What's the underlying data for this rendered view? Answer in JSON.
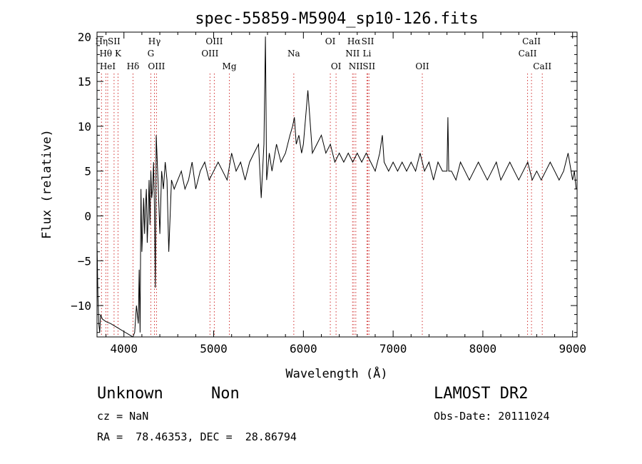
{
  "chart_data": {
    "type": "line",
    "title": "spec-55859-M5904_sp10-126.fits",
    "xlabel": "Wavelength (Å)",
    "ylabel": "Flux (relative)",
    "xlim": [
      3700,
      9050
    ],
    "ylim": [
      -13.5,
      20.5
    ],
    "xticks": [
      4000,
      5000,
      6000,
      7000,
      8000,
      9000
    ],
    "xtick_labels": [
      "4000",
      "5000",
      "6000",
      "7000",
      "8000",
      "9000"
    ],
    "yticks": [
      -10,
      -5,
      0,
      5,
      10,
      15,
      20
    ],
    "ytick_labels": [
      "−10",
      "−5",
      "0",
      "5",
      "10",
      "15",
      "20"
    ],
    "grid": false,
    "line_color": "#000000",
    "marker_color": "#d03030",
    "series": [
      {
        "x": [
          3700,
          3710,
          3720,
          3730,
          3740,
          3760,
          3800,
          3850,
          3900,
          3950,
          4000,
          4050,
          4100,
          4120,
          4140,
          4160,
          4170,
          4180,
          4190,
          4200,
          4210,
          4220,
          4230,
          4240,
          4250,
          4260,
          4270,
          4280,
          4290,
          4300,
          4310,
          4320,
          4330,
          4340,
          4350,
          4360,
          4380,
          4400,
          4420,
          4440,
          4460,
          4480,
          4500,
          4530,
          4560,
          4600,
          4640,
          4680,
          4720,
          4760,
          4800,
          4850,
          4900,
          4950,
          5000,
          5050,
          5100,
          5150,
          5200,
          5250,
          5300,
          5350,
          5400,
          5450,
          5500,
          5530,
          5560,
          5577,
          5590,
          5620,
          5650,
          5700,
          5750,
          5800,
          5850,
          5880,
          5900,
          5920,
          5950,
          5980,
          6000,
          6050,
          6100,
          6150,
          6200,
          6250,
          6300,
          6350,
          6400,
          6450,
          6500,
          6550,
          6600,
          6650,
          6700,
          6750,
          6800,
          6850,
          6880,
          6900,
          6950,
          7000,
          7050,
          7100,
          7150,
          7200,
          7250,
          7300,
          7350,
          7400,
          7450,
          7500,
          7550,
          7600,
          7610,
          7620,
          7650,
          7700,
          7750,
          7800,
          7850,
          7900,
          7950,
          8000,
          8050,
          8100,
          8150,
          8200,
          8250,
          8300,
          8350,
          8400,
          8450,
          8500,
          8550,
          8600,
          8650,
          8700,
          8750,
          8800,
          8850,
          8900,
          8950,
          9000,
          9020,
          9040
        ],
        "y": [
          -3,
          -9,
          -12,
          -13,
          -11,
          -11.5,
          -11.8,
          -12,
          -12.3,
          -12.6,
          -12.9,
          -13.2,
          -13.5,
          -13,
          -10,
          -12,
          -6,
          -13,
          3,
          -4,
          -1,
          2,
          -2,
          1,
          3,
          -3,
          0,
          4,
          -1,
          5,
          2,
          3,
          6,
          1,
          -8,
          9,
          4,
          -2,
          5,
          3,
          6,
          4,
          -4,
          4,
          3,
          4,
          5,
          3,
          4,
          6,
          3,
          5,
          6,
          4,
          5,
          6,
          5,
          4,
          7,
          5,
          6,
          4,
          6,
          7,
          8,
          2,
          8,
          20,
          4,
          7,
          5,
          8,
          6,
          7,
          9,
          10,
          11,
          8,
          9,
          7,
          8,
          14,
          7,
          8,
          9,
          7,
          8,
          6,
          7,
          6,
          7,
          6,
          7,
          6,
          7,
          6,
          5,
          7,
          9,
          6,
          5,
          6,
          5,
          6,
          5,
          6,
          5,
          7,
          5,
          6,
          4,
          6,
          5,
          5,
          11,
          5,
          5,
          4,
          6,
          5,
          4,
          5,
          6,
          5,
          4,
          5,
          6,
          4,
          5,
          6,
          5,
          4,
          5,
          6,
          4,
          5,
          4,
          5,
          6,
          5,
          4,
          5,
          7,
          4,
          5,
          3
        ]
      }
    ],
    "lines": [
      {
        "wl": 3750,
        "labels": [
          {
            "text": "Hη",
            "row": 1
          }
        ]
      },
      {
        "wl": 3798,
        "labels": [
          {
            "text": "Hθ",
            "row": 2
          }
        ]
      },
      {
        "wl": 3819,
        "labels": [
          {
            "text": "HeI",
            "row": 3
          }
        ]
      },
      {
        "wl": 3890,
        "labels": [
          {
            "text": "SII",
            "row": 1
          }
        ]
      },
      {
        "wl": 3934,
        "labels": [
          {
            "text": "K",
            "row": 2
          }
        ]
      },
      {
        "wl": 4101,
        "labels": [
          {
            "text": "Hδ",
            "row": 3
          }
        ]
      },
      {
        "wl": 4300,
        "labels": [
          {
            "text": "G",
            "row": 2
          }
        ]
      },
      {
        "wl": 4340,
        "labels": [
          {
            "text": "Hγ",
            "row": 1
          }
        ]
      },
      {
        "wl": 4363,
        "labels": [
          {
            "text": "OIII",
            "row": 3
          }
        ]
      },
      {
        "wl": 4959,
        "labels": [
          {
            "text": "OIII",
            "row": 2
          }
        ]
      },
      {
        "wl": 5007,
        "labels": [
          {
            "text": "OIII",
            "row": 1
          }
        ]
      },
      {
        "wl": 5175,
        "labels": [
          {
            "text": "Mg",
            "row": 3
          }
        ]
      },
      {
        "wl": 5893,
        "labels": [
          {
            "text": "Na",
            "row": 2
          }
        ]
      },
      {
        "wl": 6300,
        "labels": [
          {
            "text": "OI",
            "row": 1
          }
        ]
      },
      {
        "wl": 6364,
        "labels": [
          {
            "text": "OI",
            "row": 3
          }
        ]
      },
      {
        "wl": 6548,
        "labels": [
          {
            "text": "NII",
            "row": 2
          }
        ]
      },
      {
        "wl": 6563,
        "labels": [
          {
            "text": "Hα",
            "row": 1
          }
        ]
      },
      {
        "wl": 6584,
        "labels": [
          {
            "text": "NII",
            "row": 3
          }
        ]
      },
      {
        "wl": 6708,
        "labels": [
          {
            "text": "Li",
            "row": 2
          }
        ]
      },
      {
        "wl": 6717,
        "labels": [
          {
            "text": "SII",
            "row": 1
          }
        ]
      },
      {
        "wl": 6731,
        "labels": [
          {
            "text": "SII",
            "row": 3
          }
        ]
      },
      {
        "wl": 7325,
        "labels": [
          {
            "text": "OII",
            "row": 3
          }
        ]
      },
      {
        "wl": 8498,
        "labels": [
          {
            "text": "CaII",
            "row": 2
          }
        ]
      },
      {
        "wl": 8542,
        "labels": [
          {
            "text": "CaII",
            "row": 1
          }
        ]
      },
      {
        "wl": 8662,
        "labels": [
          {
            "text": "CaII",
            "row": 3
          }
        ]
      }
    ]
  },
  "info": {
    "class_label": "Unknown",
    "subclass_label": "Non",
    "survey": "LAMOST DR2",
    "cz": "cz = NaN",
    "obs_date": "Obs-Date: 20111024",
    "coords": "RA =  78.46353, DEC =  28.86794"
  }
}
